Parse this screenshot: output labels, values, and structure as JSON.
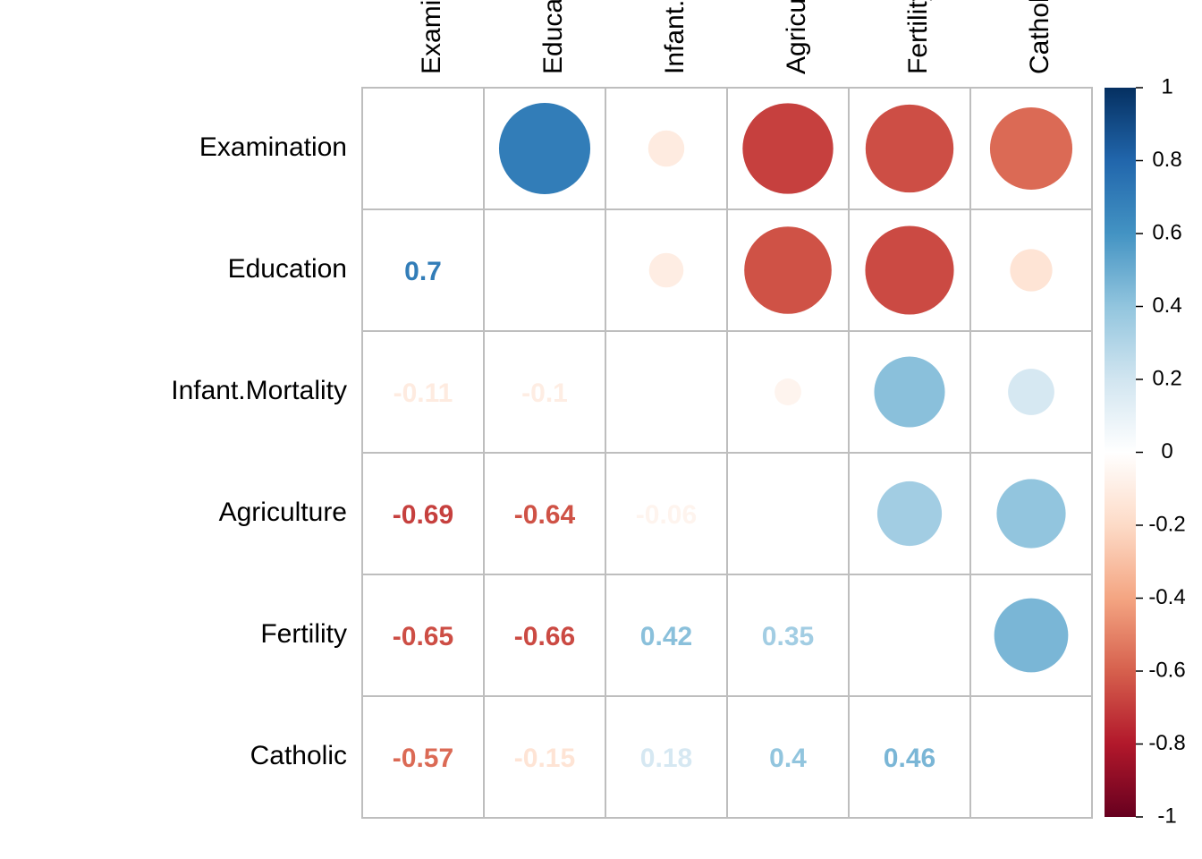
{
  "chart_data": {
    "type": "corrplot",
    "categories": [
      "Examination",
      "Education",
      "Infant.Mortality",
      "Agriculture",
      "Fertility",
      "Catholic"
    ],
    "values": [
      [],
      [
        0.7
      ],
      [
        -0.11,
        -0.1
      ],
      [
        -0.69,
        -0.64,
        -0.06
      ],
      [
        -0.65,
        -0.66,
        0.42,
        0.35
      ],
      [
        -0.57,
        -0.15,
        0.18,
        0.4,
        0.46
      ]
    ],
    "colors": [
      "#67001F",
      "#B2182B",
      "#D6604D",
      "#F4A582",
      "#FDDBC7",
      "#FFFFFF",
      "#D1E5F0",
      "#92C5DE",
      "#4393C3",
      "#2166AC",
      "#053061"
    ],
    "colorlim": [
      -1,
      1
    ],
    "colorticks": [
      1,
      0.8,
      0.6,
      0.4,
      0.2,
      0,
      -0.2,
      -0.4,
      -0.6,
      -0.8,
      -1
    ]
  }
}
